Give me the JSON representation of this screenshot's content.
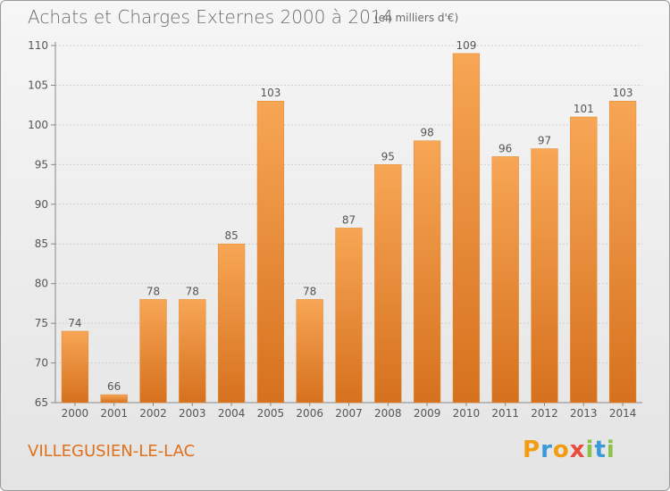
{
  "title": "Achats et Charges Externes 2000 à 2014",
  "subtitle": "(en milliers d'€)",
  "commune": "VILLEGUSIEN-LE-LAC",
  "logo": {
    "p": "P",
    "r": "r",
    "o": "o",
    "x": "x",
    "i": "i",
    "t": "t",
    "i2": "i"
  },
  "colors": {
    "bar_light": "#f5a550",
    "bar_dark": "#d9731f",
    "accent": "#e0711c"
  },
  "chart_data": {
    "type": "bar",
    "title": "Achats et Charges Externes 2000 à 2014",
    "subtitle": "(en milliers d'€)",
    "categories": [
      "2000",
      "2001",
      "2002",
      "2003",
      "2004",
      "2005",
      "2006",
      "2007",
      "2008",
      "2009",
      "2010",
      "2011",
      "2012",
      "2013",
      "2014"
    ],
    "values": [
      74,
      66,
      78,
      78,
      85,
      103,
      78,
      87,
      95,
      98,
      109,
      96,
      97,
      101,
      103
    ],
    "ylim": [
      65,
      110
    ],
    "yticks": [
      65,
      70,
      75,
      80,
      85,
      90,
      95,
      100,
      105,
      110
    ],
    "grid": true,
    "xlabel": "",
    "ylabel": ""
  }
}
